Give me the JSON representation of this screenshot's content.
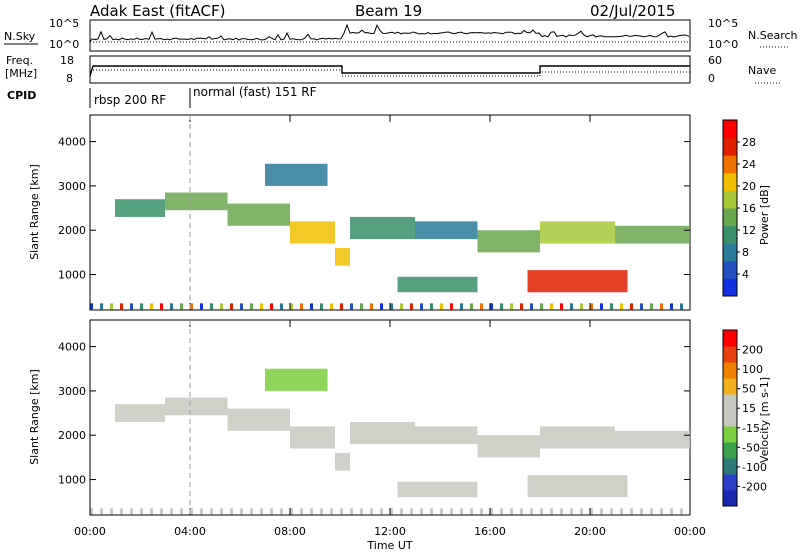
{
  "header": {
    "station": "Adak East (fitACF)",
    "beam": "Beam 19",
    "date": "02/Jul/2015"
  },
  "nsky_panel": {
    "left_label": "N.Sky",
    "right_label": "N.Search",
    "left_ticks": [
      "10^5",
      "10^0"
    ],
    "right_ticks": [
      "10^5",
      "10^0"
    ]
  },
  "freq_panel": {
    "label_line1": "Freq.",
    "label_line2": "[MHz]",
    "right_label": "Nave",
    "left_ticks": [
      "18",
      "8"
    ],
    "right_ticks": [
      "60",
      "0"
    ]
  },
  "cpid": {
    "label": "CPID",
    "modes": [
      "rbsp 200 RF",
      "normal (fast) 151 RF"
    ],
    "mode_change_time": "04:00"
  },
  "colors": {
    "power_scale": [
      "#1030e0",
      "#2050c0",
      "#2a7a9a",
      "#3a8f6a",
      "#6aa84f",
      "#a8c838",
      "#f0c000",
      "#f07000",
      "#e02000",
      "#ff0000"
    ],
    "velocity_scale": [
      "#1a2ab0",
      "#2a40c8",
      "#2e7a78",
      "#3aa04a",
      "#7ad040",
      "#c8c8c0",
      "#c8c8c0",
      "#f0b020",
      "#f08000",
      "#e84010",
      "#ff0000"
    ]
  },
  "chart_data": [
    {
      "type": "heatmap",
      "title": "Power",
      "ylabel": "Slant Range [km]",
      "xlabel": "Time UT",
      "x_ticks": [
        "00:00",
        "04:00",
        "08:00",
        "12:00",
        "16:00",
        "20:00",
        "00:00"
      ],
      "y_ticks": [
        1000,
        2000,
        3000,
        4000
      ],
      "ylim": [
        200,
        4600
      ],
      "colorbar": {
        "label": "Power [dB]",
        "ticks": [
          "28",
          "24",
          "20",
          "16",
          "12",
          "8",
          "4"
        ],
        "range": [
          0,
          30
        ]
      },
      "regions": [
        {
          "t": [
            1.0,
            3.0
          ],
          "r": [
            2300,
            2700
          ],
          "level": 10
        },
        {
          "t": [
            3.0,
            5.5
          ],
          "r": [
            2450,
            2850
          ],
          "level": 14
        },
        {
          "t": [
            5.5,
            8.0
          ],
          "r": [
            2100,
            2600
          ],
          "level": 12
        },
        {
          "t": [
            8.0,
            9.8
          ],
          "r": [
            1700,
            2200
          ],
          "level": 18
        },
        {
          "t": [
            9.8,
            10.4
          ],
          "r": [
            1200,
            1600
          ],
          "level": 20
        },
        {
          "t": [
            10.4,
            13.0
          ],
          "r": [
            1800,
            2300
          ],
          "level": 10
        },
        {
          "t": [
            13.0,
            15.5
          ],
          "r": [
            1800,
            2200
          ],
          "level": 8
        },
        {
          "t": [
            15.5,
            18.0
          ],
          "r": [
            1500,
            2000
          ],
          "level": 12
        },
        {
          "t": [
            18.0,
            21.0
          ],
          "r": [
            1700,
            2200
          ],
          "level": 16
        },
        {
          "t": [
            21.0,
            24.0
          ],
          "r": [
            1700,
            2100
          ],
          "level": 14
        },
        {
          "t": [
            12.3,
            15.5
          ],
          "r": [
            600,
            950
          ],
          "level": 9
        },
        {
          "t": [
            17.5,
            21.5
          ],
          "r": [
            600,
            1100
          ],
          "level": 24
        },
        {
          "t": [
            7.0,
            9.5
          ],
          "r": [
            3000,
            3500
          ],
          "level": 6
        }
      ]
    },
    {
      "type": "heatmap",
      "title": "Velocity",
      "ylabel": "Slant Range [km]",
      "xlabel": "Time UT",
      "x_ticks": [
        "00:00",
        "04:00",
        "08:00",
        "12:00",
        "16:00",
        "20:00",
        "00:00"
      ],
      "y_ticks": [
        1000,
        2000,
        3000,
        4000
      ],
      "ylim": [
        200,
        4600
      ],
      "colorbar": {
        "label": "Velocity [m s-1]",
        "ticks": [
          "200",
          "100",
          "50",
          "15",
          "-15",
          "-50",
          "-100",
          "-200"
        ],
        "range": [
          -250,
          250
        ]
      },
      "regions": [
        {
          "t": [
            1.0,
            3.0
          ],
          "r": [
            2300,
            2700
          ],
          "level": 0
        },
        {
          "t": [
            3.0,
            5.5
          ],
          "r": [
            2450,
            2850
          ],
          "level": 0
        },
        {
          "t": [
            5.5,
            8.0
          ],
          "r": [
            2100,
            2600
          ],
          "level": 0
        },
        {
          "t": [
            8.0,
            9.8
          ],
          "r": [
            1700,
            2200
          ],
          "level": 0
        },
        {
          "t": [
            9.8,
            10.4
          ],
          "r": [
            1200,
            1600
          ],
          "level": 0
        },
        {
          "t": [
            10.4,
            13.0
          ],
          "r": [
            1800,
            2300
          ],
          "level": 0
        },
        {
          "t": [
            13.0,
            15.5
          ],
          "r": [
            1800,
            2200
          ],
          "level": 40
        },
        {
          "t": [
            15.5,
            18.0
          ],
          "r": [
            1500,
            2000
          ],
          "level": 0
        },
        {
          "t": [
            18.0,
            21.0
          ],
          "r": [
            1700,
            2200
          ],
          "level": 0
        },
        {
          "t": [
            21.0,
            24.0
          ],
          "r": [
            1700,
            2100
          ],
          "level": 0
        },
        {
          "t": [
            12.3,
            15.5
          ],
          "r": [
            600,
            950
          ],
          "level": 30
        },
        {
          "t": [
            17.5,
            21.5
          ],
          "r": [
            600,
            1100
          ],
          "level": 0
        },
        {
          "t": [
            7.0,
            9.5
          ],
          "r": [
            3000,
            3500
          ],
          "level": -60
        }
      ]
    }
  ]
}
